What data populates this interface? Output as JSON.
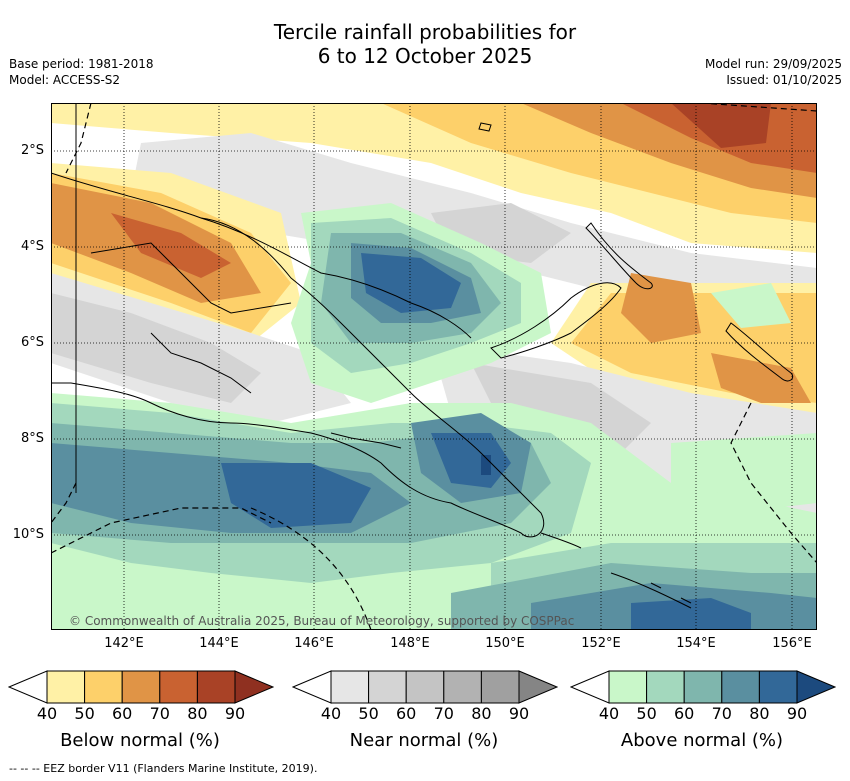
{
  "title": {
    "line1": "Tercile rainfall probabilities for",
    "line2": "6 to 12 October 2025"
  },
  "meta": {
    "base_period": "Base period: 1981-2018",
    "model": "Model: ACCESS-S2",
    "model_run": "Model run: 29/09/2025",
    "issued": "Issued: 01/10/2025"
  },
  "map": {
    "lat_labels": [
      "2°S",
      "4°S",
      "6°S",
      "8°S",
      "10°S"
    ],
    "lon_labels": [
      "142°E",
      "144°E",
      "146°E",
      "148°E",
      "150°E",
      "152°E",
      "154°E",
      "156°E"
    ],
    "credit": "© Commonwealth of Australia 2025, Bureau of Meteorology, supported by COSPPac"
  },
  "colorbars": [
    {
      "label": "Below normal (%)",
      "ticks": [
        "40",
        "50",
        "60",
        "70",
        "80",
        "90"
      ],
      "colors": [
        "#fff1a6",
        "#fdd06a",
        "#e09446",
        "#c96231",
        "#a94226",
        "#8f3020"
      ]
    },
    {
      "label": "Near normal (%)",
      "ticks": [
        "40",
        "50",
        "60",
        "70",
        "80",
        "90"
      ],
      "colors": [
        "#e6e6e6",
        "#d4d4d4",
        "#c4c4c4",
        "#b2b2b2",
        "#a0a0a0",
        "#858585"
      ]
    },
    {
      "label": "Above normal (%)",
      "ticks": [
        "40",
        "50",
        "60",
        "70",
        "80",
        "90"
      ],
      "colors": [
        "#c9f7c9",
        "#a3d8bd",
        "#7fb6ad",
        "#5a8fa0",
        "#326898",
        "#1c4a7e"
      ]
    }
  ],
  "footer": "--  --  -- EEZ border V11 (Flanders Marine Institute, 2019)."
}
